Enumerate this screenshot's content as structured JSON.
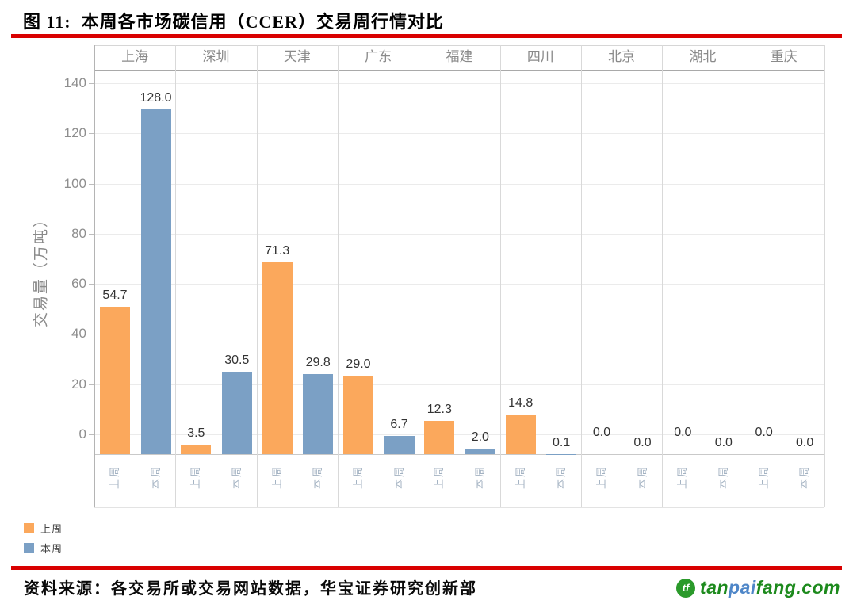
{
  "title": {
    "text": "图 11:  本周各市场碳信用（CCER）交易周行情对比"
  },
  "chart_data": {
    "type": "bar",
    "title": "本周各市场碳信用（CCER）交易周行情对比",
    "categories": [
      "上海",
      "深圳",
      "天津",
      "广东",
      "福建",
      "四川",
      "北京",
      "湖北",
      "重庆"
    ],
    "series": [
      {
        "name": "上周",
        "color": "#FBA85C",
        "values": [
          54.7,
          3.5,
          71.3,
          29.0,
          12.3,
          14.8,
          0.0,
          0.0,
          0.0
        ]
      },
      {
        "name": "本周",
        "color": "#7BA0C5",
        "values": [
          128.0,
          30.5,
          29.8,
          6.7,
          2.0,
          0.1,
          0.0,
          0.0,
          0.0
        ]
      }
    ],
    "ylabel": "交易量（万吨）",
    "yticks": [
      0,
      20,
      40,
      60,
      80,
      100,
      120,
      140
    ],
    "ylim": [
      0,
      140
    ],
    "grid": true,
    "value_labels_decimals": 1,
    "legend_position": "bottom-left"
  },
  "legend": {
    "items": [
      {
        "label": "上周",
        "color": "#FBA85C"
      },
      {
        "label": "本周",
        "color": "#7BA0C5"
      }
    ]
  },
  "footer": {
    "source": "资料来源：各交易所或交易网站数据，华宝证券研究创新部"
  },
  "logo": {
    "name": "tanpaifang.com",
    "segments": [
      {
        "text": "tan",
        "color": "#1d8a1d"
      },
      {
        "text": "pai",
        "color": "#4e86c8"
      },
      {
        "text": "fang.com",
        "color": "#1d8a1d"
      }
    ],
    "icon_text": "tf",
    "icon_color": "#2b9a2b"
  },
  "colors": {
    "accent_red": "#d90000",
    "bar_orange": "#FBA85C",
    "bar_blue": "#7BA0C5",
    "gridline": "#ebebeb",
    "panel_divider": "#d9d9d9",
    "header_rule": "#a9a9a9",
    "axis_line": "#b4b4b4",
    "baseline": "#c9c9c9"
  }
}
